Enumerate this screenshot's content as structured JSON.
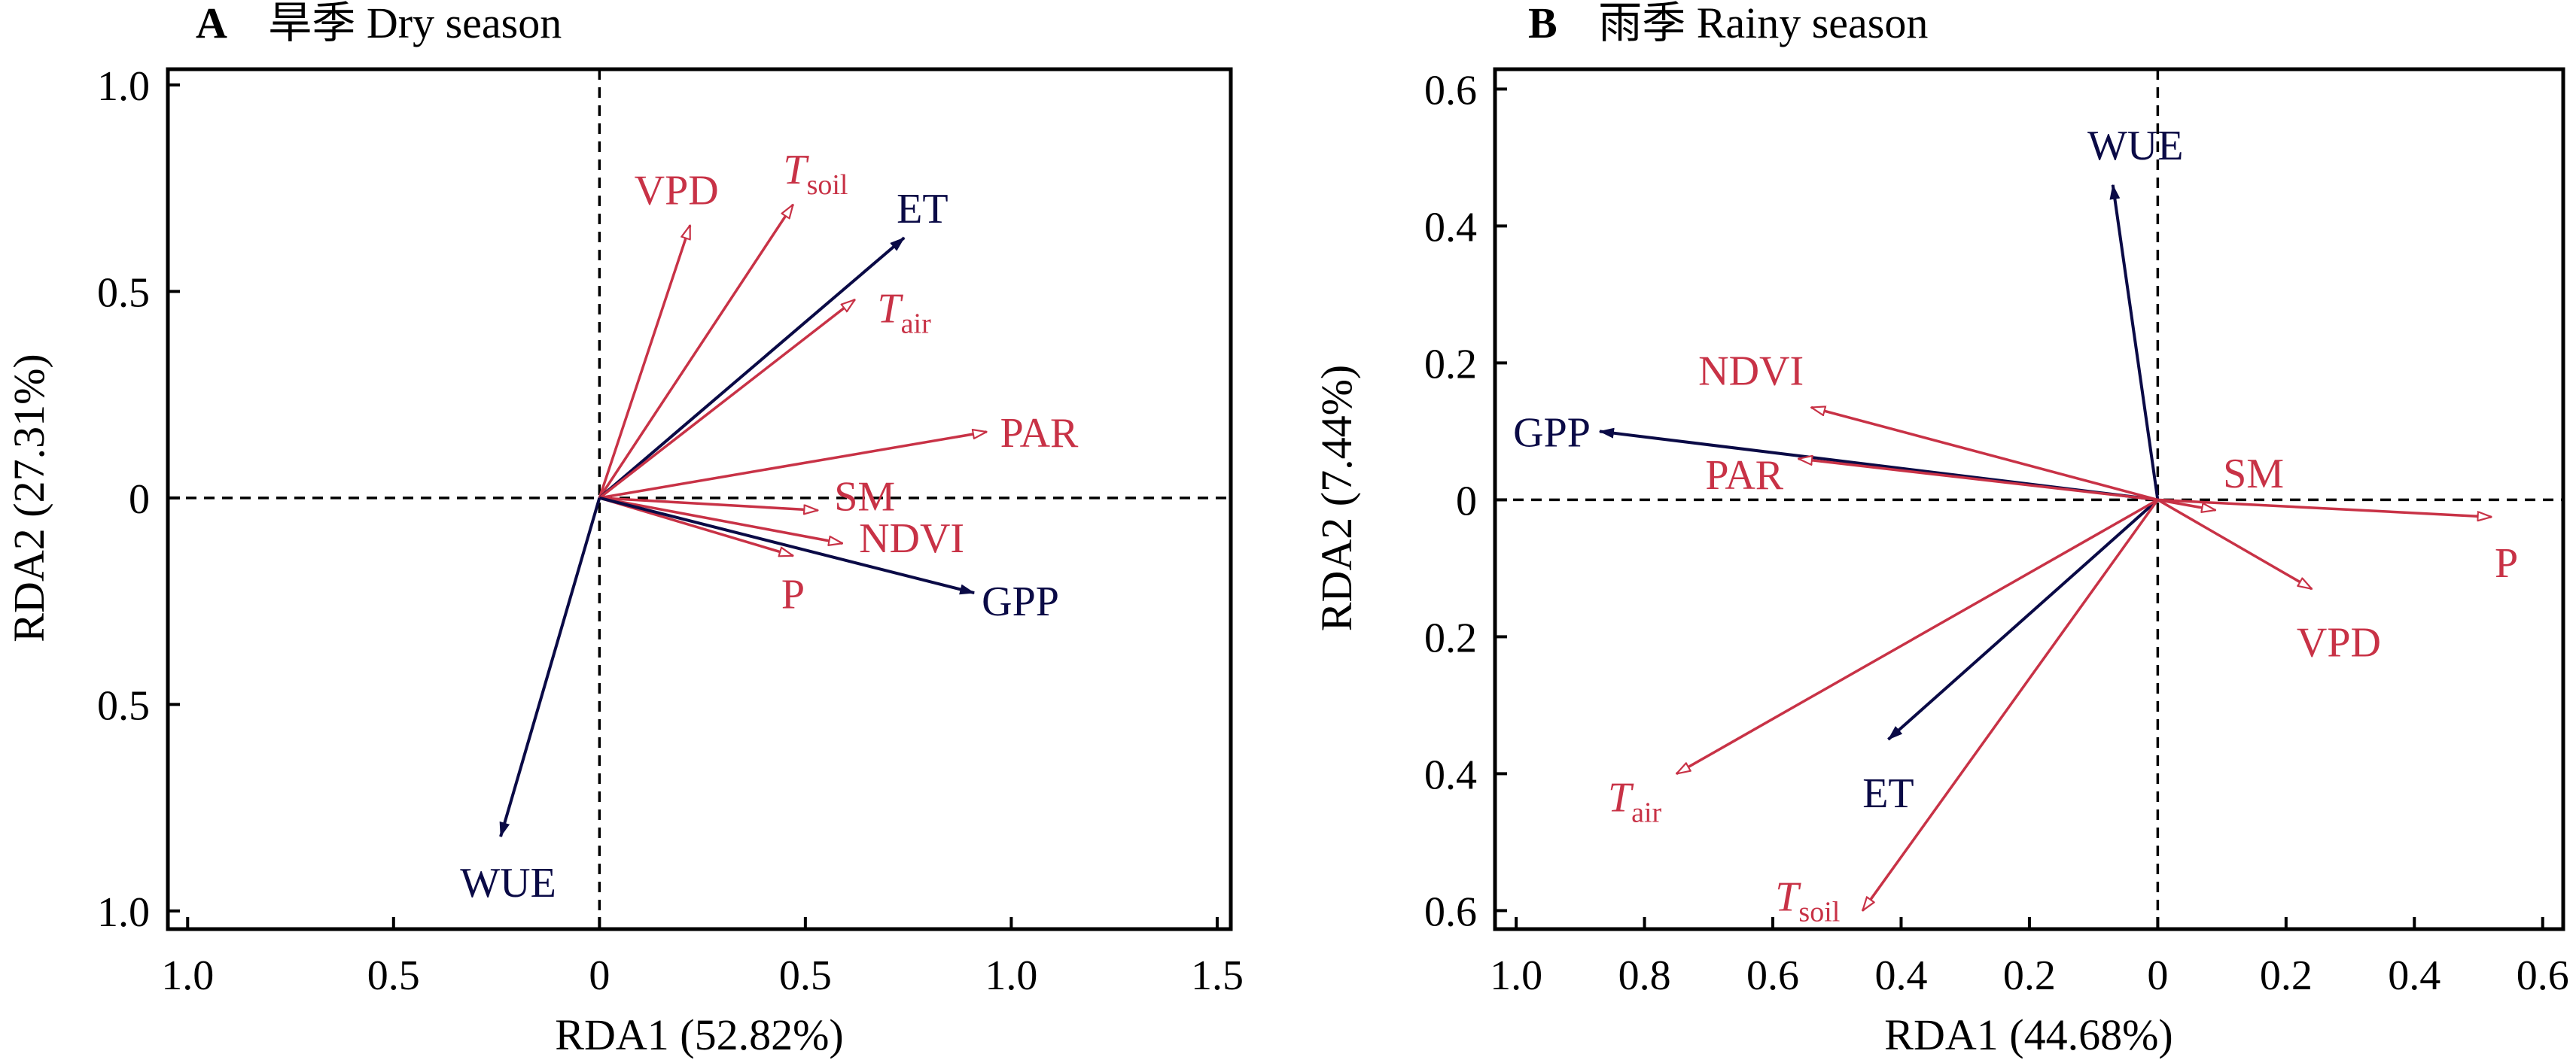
{
  "colors": {
    "environment": "#C83246",
    "response": "#0A0A46",
    "axis": "#000000"
  },
  "chart_data": [
    {
      "type": "biplot",
      "panel_letter": "A",
      "title": "旱季 Dry season",
      "xlabel": "RDA1 (52.82%)",
      "ylabel": "RDA2 (27.31%)",
      "xlim": [
        -1.0,
        1.5
      ],
      "ylim": [
        -1.0,
        1.0
      ],
      "xticks": [
        -1.0,
        -0.5,
        0,
        0.5,
        1.0,
        1.5
      ],
      "xtick_labels": [
        "1.0",
        "0.5",
        "0",
        "0.5",
        "1.0",
        "1.5"
      ],
      "yticks": [
        1.0,
        0.5,
        0,
        -0.5,
        -1.0
      ],
      "ytick_labels": [
        "1.0",
        "0.5",
        "0",
        "0.5",
        "1.0"
      ],
      "reference_lines": "dashed lines at x=0 and y=0",
      "arrows": [
        {
          "name": "VPD",
          "sub": "",
          "group": "environment",
          "x": 0.22,
          "y": 0.66
        },
        {
          "name": "T",
          "sub": "soil",
          "group": "environment",
          "x": 0.47,
          "y": 0.71
        },
        {
          "name": "ET",
          "sub": "",
          "group": "response",
          "x": 0.74,
          "y": 0.63
        },
        {
          "name": "T",
          "sub": "air",
          "group": "environment",
          "x": 0.62,
          "y": 0.48
        },
        {
          "name": "PAR",
          "sub": "",
          "group": "environment",
          "x": 0.94,
          "y": 0.16
        },
        {
          "name": "SM",
          "sub": "",
          "group": "environment",
          "x": 0.53,
          "y": -0.03
        },
        {
          "name": "NDVI",
          "sub": "",
          "group": "environment",
          "x": 0.59,
          "y": -0.11
        },
        {
          "name": "P",
          "sub": "",
          "group": "environment",
          "x": 0.47,
          "y": -0.14
        },
        {
          "name": "GPP",
          "sub": "",
          "group": "response",
          "x": 0.91,
          "y": -0.23
        },
        {
          "name": "WUE",
          "sub": "",
          "group": "response",
          "x": -0.24,
          "y": -0.82
        }
      ]
    },
    {
      "type": "biplot",
      "panel_letter": "B",
      "title": "雨季 Rainy season",
      "xlabel": "RDA1 (44.68%)",
      "ylabel": "RDA2 (7.44%)",
      "xlim": [
        -1.0,
        0.6
      ],
      "ylim": [
        -0.6,
        0.6
      ],
      "xticks": [
        -1.0,
        -0.8,
        -0.6,
        -0.4,
        -0.2,
        0,
        0.2,
        0.4,
        0.6
      ],
      "xtick_labels": [
        "1.0",
        "0.8",
        "0.6",
        "0.4",
        "0.2",
        "0",
        "0.2",
        "0.4",
        "0.6"
      ],
      "yticks": [
        0.6,
        0.4,
        0.2,
        0,
        -0.2,
        -0.4,
        -0.6
      ],
      "ytick_labels": [
        "0.6",
        "0.4",
        "0.2",
        "0",
        "0.2",
        "0.4",
        "0.6"
      ],
      "reference_lines": "dashed lines at x=0 and y=0",
      "arrows": [
        {
          "name": "WUE",
          "sub": "",
          "group": "response",
          "x": -0.07,
          "y": 0.46
        },
        {
          "name": "GPP",
          "sub": "",
          "group": "response",
          "x": -0.87,
          "y": 0.1
        },
        {
          "name": "NDVI",
          "sub": "",
          "group": "environment",
          "x": -0.54,
          "y": 0.135
        },
        {
          "name": "PAR",
          "sub": "",
          "group": "environment",
          "x": -0.56,
          "y": 0.06
        },
        {
          "name": "SM",
          "sub": "",
          "group": "environment",
          "x": 0.09,
          "y": -0.015
        },
        {
          "name": "P",
          "sub": "",
          "group": "environment",
          "x": 0.52,
          "y": -0.025
        },
        {
          "name": "VPD",
          "sub": "",
          "group": "environment",
          "x": 0.24,
          "y": -0.13
        },
        {
          "name": "ET",
          "sub": "",
          "group": "response",
          "x": -0.42,
          "y": -0.35
        },
        {
          "name": "T",
          "sub": "air",
          "group": "environment",
          "x": -0.75,
          "y": -0.4
        },
        {
          "name": "T",
          "sub": "soil",
          "group": "environment",
          "x": -0.46,
          "y": -0.6
        }
      ]
    }
  ]
}
